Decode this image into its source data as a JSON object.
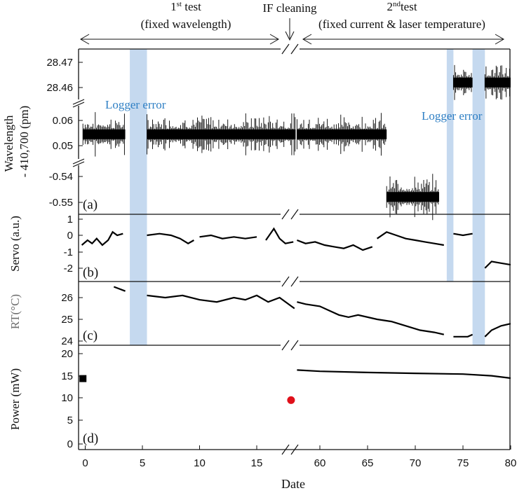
{
  "chart_data": {
    "type": "scatter",
    "xlabel": "Date",
    "x_ticks": [
      "0",
      "5",
      "10",
      "15",
      "60",
      "65",
      "70",
      "75",
      "80"
    ],
    "header": {
      "test1_prefix": "1",
      "test1_sup": "st",
      "test1_suffix": " test",
      "test1_detail": "(fixed wavelength)",
      "cleaning": "IF cleaning",
      "test2_prefix": "2",
      "test2_sup": "nd",
      "test2_suffix": "test",
      "test2_detail": "(fixed current & laser temperature)"
    },
    "annotations": {
      "logger_error_1": "Logger error",
      "logger_error_2": "Logger error"
    },
    "highlight_color": "#c5d9ef",
    "logger_error_spans": [
      [
        3.9,
        5.4
      ],
      [
        73.3,
        74.0
      ],
      [
        76.0,
        77.3
      ]
    ],
    "panels": [
      {
        "id": "a",
        "label": "(a)",
        "ylabel_line1": "Wavelength",
        "ylabel_line2": "- 410,700 (pm)",
        "y_ticks": [
          "28.47",
          "28.46",
          "0.06",
          "0.05",
          "-0.54",
          "-0.55"
        ],
        "series": [
          {
            "x": [
              -0.2,
              3.5
            ],
            "y": 0.0545
          },
          {
            "x": [
              5.4,
              18.4
            ],
            "y": 0.0545
          },
          {
            "x": [
              57.6,
              67.0
            ],
            "y": 0.0545
          },
          {
            "x": [
              67.0,
              72.5
            ],
            "y": -0.548
          },
          {
            "x": [
              74.0,
              76.0
            ],
            "y": 28.462
          },
          {
            "x": [
              77.3,
              80.0
            ],
            "y": 28.462
          }
        ]
      },
      {
        "id": "b",
        "label": "(b)",
        "ylabel": "Servo (a.u.)",
        "y_ticks": [
          "1",
          "0",
          "-1",
          "-2"
        ],
        "series": [
          {
            "x": [
              -0.3,
              0.2,
              0.6,
              1.0,
              1.5,
              2.0,
              2.4,
              2.8,
              3.3
            ],
            "y": [
              -0.6,
              -0.3,
              -0.5,
              -0.2,
              -0.6,
              -0.3,
              0.2,
              0.0,
              0.1
            ]
          },
          {
            "x": [
              5.4,
              6.5,
              7.5,
              8.3,
              9.0,
              9.5
            ],
            "y": [
              0.0,
              0.1,
              0.0,
              -0.2,
              -0.5,
              -0.3
            ]
          },
          {
            "x": [
              10.0,
              11.0,
              12.0,
              13.0,
              14.0,
              15.0
            ],
            "y": [
              -0.1,
              0.0,
              -0.2,
              -0.1,
              -0.2,
              -0.1
            ]
          },
          {
            "x": [
              15.8,
              16.5,
              17.0,
              17.5,
              18.2
            ],
            "y": [
              -0.3,
              0.4,
              -0.2,
              -0.5,
              -0.4
            ]
          },
          {
            "x": [
              57.6,
              58.5,
              59.5,
              60.5,
              61.5,
              62.5,
              63.5,
              64.5,
              65.5
            ],
            "y": [
              -0.3,
              -0.5,
              -0.4,
              -0.6,
              -0.7,
              -0.8,
              -0.6,
              -0.9,
              -0.7
            ]
          },
          {
            "x": [
              66.0,
              67.0,
              68.0,
              69.0,
              70.0,
              71.0,
              72.0,
              73.0
            ],
            "y": [
              -0.2,
              0.2,
              0.0,
              -0.2,
              -0.3,
              -0.4,
              -0.5,
              -0.6
            ]
          },
          {
            "x": [
              74.0,
              75.0,
              76.0
            ],
            "y": [
              0.1,
              0.0,
              0.1
            ]
          },
          {
            "x": [
              77.3,
              78.0,
              79.0,
              80.0
            ],
            "y": [
              -2.0,
              -1.6,
              -1.7,
              -1.8
            ]
          }
        ]
      },
      {
        "id": "c",
        "label": "(c)",
        "ylabel": "RT(°C)",
        "y_ticks": [
          "26",
          "25",
          "24"
        ],
        "series": [
          {
            "x": [
              2.5,
              3.5
            ],
            "y": [
              26.5,
              26.3
            ]
          },
          {
            "x": [
              5.4,
              7.0,
              8.5,
              10.0,
              11.5,
              13.0,
              14.0,
              15.0,
              16.0,
              17.0,
              18.3
            ],
            "y": [
              26.1,
              26.0,
              26.1,
              25.9,
              25.8,
              26.0,
              25.9,
              26.1,
              25.8,
              26.0,
              25.5
            ]
          },
          {
            "x": [
              57.6,
              58.5,
              60.0,
              61.0,
              62.0,
              63.0,
              64.0,
              66.0,
              67.5,
              69.0,
              70.5,
              72.0,
              73.0
            ],
            "y": [
              25.8,
              25.7,
              25.6,
              25.4,
              25.2,
              25.1,
              25.2,
              25.0,
              24.9,
              24.7,
              24.5,
              24.4,
              24.3
            ]
          },
          {
            "x": [
              74.0,
              75.5,
              76.0
            ],
            "y": [
              24.2,
              24.2,
              24.3
            ]
          },
          {
            "x": [
              77.3,
              78.0,
              79.0,
              80.0
            ],
            "y": [
              24.2,
              24.5,
              24.7,
              24.8
            ]
          }
        ]
      },
      {
        "id": "d",
        "label": "(d)",
        "ylabel": "Power (mW)",
        "y_ticks": [
          "20",
          "15",
          "10",
          "5",
          "0"
        ],
        "points": [
          {
            "x": -0.2,
            "y": 16.1,
            "color": "#000000",
            "marker": "square"
          },
          {
            "x": 18.0,
            "y": 10.8,
            "color": "#e0101a",
            "marker": "circle"
          }
        ],
        "series": [
          {
            "x": [
              57.6,
              60.0,
              65.0,
              70.0,
              75.0,
              78.0,
              80.0
            ],
            "y": [
              18.2,
              17.9,
              17.6,
              17.4,
              17.2,
              16.8,
              16.2
            ]
          }
        ]
      }
    ]
  }
}
